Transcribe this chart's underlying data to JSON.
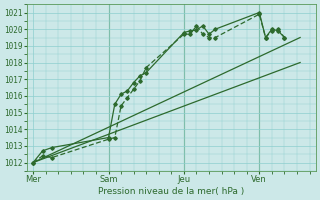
{
  "background_color": "#cce8e8",
  "grid_color": "#8ecfcf",
  "line_color": "#2d6a2d",
  "vline_color": "#5a9a5a",
  "ylabel": "Pression niveau de la mer( hPa )",
  "ylim": [
    1011.5,
    1021.5
  ],
  "yticks": [
    1012,
    1013,
    1014,
    1015,
    1016,
    1017,
    1018,
    1019,
    1020,
    1021
  ],
  "xtick_labels": [
    "Mer",
    "Sam",
    "Jeu",
    "Ven"
  ],
  "xtick_positions": [
    0,
    24,
    48,
    72
  ],
  "vline_positions": [
    24,
    48,
    72
  ],
  "xlim": [
    -2,
    90
  ],
  "series1_x": [
    0,
    3,
    6,
    24,
    26,
    28,
    30,
    32,
    34,
    36,
    48,
    50,
    52,
    54,
    56,
    58,
    72,
    74,
    76,
    78,
    80
  ],
  "values1": [
    1012.0,
    1012.7,
    1012.9,
    1013.5,
    1015.5,
    1016.1,
    1016.3,
    1016.8,
    1017.2,
    1017.4,
    1019.8,
    1019.9,
    1019.95,
    1020.2,
    1019.7,
    1020.0,
    1021.0,
    1019.5,
    1020.0,
    1019.9,
    1019.5
  ],
  "series2_x": [
    0,
    3,
    6,
    24,
    26,
    28,
    30,
    32,
    34,
    36,
    48,
    50,
    52,
    54,
    56,
    58,
    72,
    74,
    76,
    78,
    80
  ],
  "values2": [
    1012.0,
    1012.4,
    1012.3,
    1013.4,
    1013.5,
    1015.4,
    1015.9,
    1016.4,
    1016.9,
    1017.7,
    1019.7,
    1019.7,
    1020.2,
    1019.7,
    1019.5,
    1019.5,
    1020.9,
    1019.5,
    1019.9,
    1020.0,
    1019.5
  ],
  "trend1_x": [
    0,
    85
  ],
  "trend1_y": [
    1012.0,
    1019.5
  ],
  "trend2_x": [
    0,
    85
  ],
  "trend2_y": [
    1012.0,
    1018.0
  ]
}
